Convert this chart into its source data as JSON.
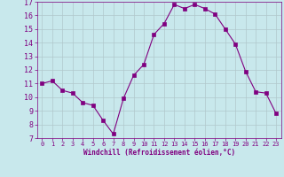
{
  "x": [
    0,
    1,
    2,
    3,
    4,
    5,
    6,
    7,
    8,
    9,
    10,
    11,
    12,
    13,
    14,
    15,
    16,
    17,
    18,
    19,
    20,
    21,
    22,
    23
  ],
  "y": [
    11.0,
    11.2,
    10.5,
    10.3,
    9.6,
    9.4,
    8.3,
    7.3,
    9.9,
    11.6,
    12.4,
    14.6,
    15.4,
    16.8,
    16.5,
    16.8,
    16.5,
    16.1,
    15.0,
    13.9,
    11.9,
    10.4,
    10.3,
    8.8
  ],
  "line_color": "#800080",
  "marker": "s",
  "marker_size": 2.5,
  "bg_color": "#c8e8ec",
  "grid_color": "#b0c8cc",
  "xlabel": "Windchill (Refroidissement éolien,°C)",
  "xlabel_color": "#800080",
  "tick_color": "#800080",
  "ylim": [
    7,
    17
  ],
  "xlim": [
    -0.5,
    23.5
  ],
  "yticks": [
    7,
    8,
    9,
    10,
    11,
    12,
    13,
    14,
    15,
    16,
    17
  ],
  "xticks": [
    0,
    1,
    2,
    3,
    4,
    5,
    6,
    7,
    8,
    9,
    10,
    11,
    12,
    13,
    14,
    15,
    16,
    17,
    18,
    19,
    20,
    21,
    22,
    23
  ],
  "xtick_labels": [
    "0",
    "1",
    "2",
    "3",
    "4",
    "5",
    "6",
    "7",
    "8",
    "9",
    "10",
    "11",
    "12",
    "13",
    "14",
    "15",
    "16",
    "17",
    "18",
    "19",
    "20",
    "21",
    "22",
    "23"
  ]
}
